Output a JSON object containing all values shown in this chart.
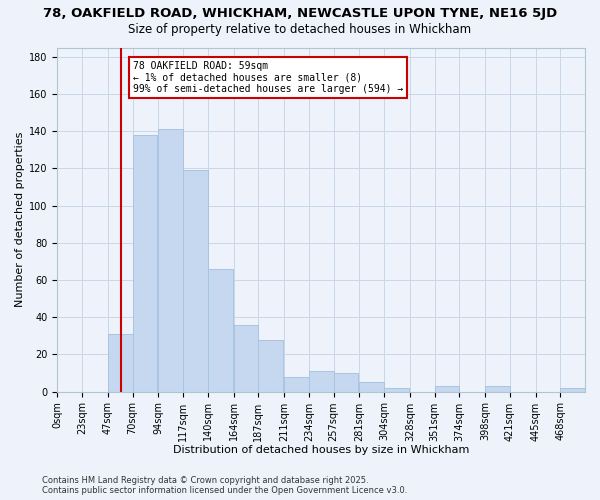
{
  "title": "78, OAKFIELD ROAD, WHICKHAM, NEWCASTLE UPON TYNE, NE16 5JD",
  "subtitle": "Size of property relative to detached houses in Whickham",
  "xlabel": "Distribution of detached houses by size in Whickham",
  "ylabel": "Number of detached properties",
  "bin_labels": [
    "0sqm",
    "23sqm",
    "47sqm",
    "70sqm",
    "94sqm",
    "117sqm",
    "140sqm",
    "164sqm",
    "187sqm",
    "211sqm",
    "234sqm",
    "257sqm",
    "281sqm",
    "304sqm",
    "328sqm",
    "351sqm",
    "374sqm",
    "398sqm",
    "421sqm",
    "445sqm",
    "468sqm"
  ],
  "bin_edges": [
    0,
    23,
    47,
    70,
    94,
    117,
    140,
    164,
    187,
    211,
    234,
    257,
    281,
    304,
    328,
    351,
    374,
    398,
    421,
    445,
    468
  ],
  "bar_heights": [
    0,
    0,
    31,
    138,
    141,
    119,
    66,
    36,
    28,
    8,
    11,
    10,
    5,
    2,
    0,
    3,
    0,
    3,
    0,
    0,
    2
  ],
  "bar_color": "#c5d8f0",
  "bar_edge_color": "#a8c4e0",
  "grid_color": "#c8d8e8",
  "property_line_x": 59,
  "property_line_color": "#cc0000",
  "annotation_text": "78 OAKFIELD ROAD: 59sqm\n← 1% of detached houses are smaller (8)\n99% of semi-detached houses are larger (594) →",
  "annotation_box_color": "#ffffff",
  "annotation_box_edge": "#cc0000",
  "ylim": [
    0,
    185
  ],
  "yticks": [
    0,
    20,
    40,
    60,
    80,
    100,
    120,
    140,
    160,
    180
  ],
  "footer_line1": "Contains HM Land Registry data © Crown copyright and database right 2025.",
  "footer_line2": "Contains public sector information licensed under the Open Government Licence v3.0.",
  "bg_color": "#eef3fb",
  "title_fontsize": 9.5,
  "subtitle_fontsize": 8.5,
  "xlabel_fontsize": 8,
  "ylabel_fontsize": 8,
  "tick_fontsize": 7,
  "annot_fontsize": 7,
  "footer_fontsize": 6
}
